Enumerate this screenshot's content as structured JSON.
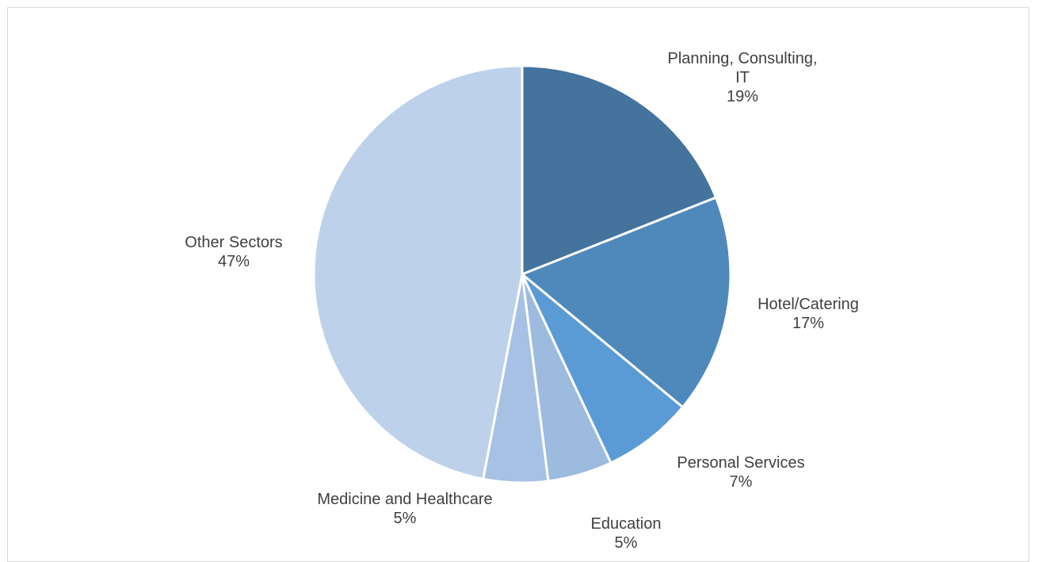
{
  "chart_data": {
    "type": "pie",
    "title": "",
    "start_angle_deg": 0,
    "direction": "clockwise",
    "slices": [
      {
        "label_lines": [
          "Planning, Consulting,",
          "IT"
        ],
        "percent_label": "19%",
        "value": 19,
        "color": "#44739e"
      },
      {
        "label_lines": [
          "Hotel/Catering"
        ],
        "percent_label": "17%",
        "value": 17,
        "color": "#4f88bb"
      },
      {
        "label_lines": [
          "Personal Services"
        ],
        "percent_label": "7%",
        "value": 7,
        "color": "#5b9bd5"
      },
      {
        "label_lines": [
          "Education"
        ],
        "percent_label": "5%",
        "value": 5,
        "color": "#9dbadf"
      },
      {
        "label_lines": [
          "Medicine and Healthcare"
        ],
        "percent_label": "5%",
        "value": 5,
        "color": "#a6c1e4"
      },
      {
        "label_lines": [
          "Other Sectors"
        ],
        "percent_label": "47%",
        "value": 47,
        "color": "#bdd1ea"
      }
    ],
    "legend": "none",
    "data_labels": "outside"
  }
}
